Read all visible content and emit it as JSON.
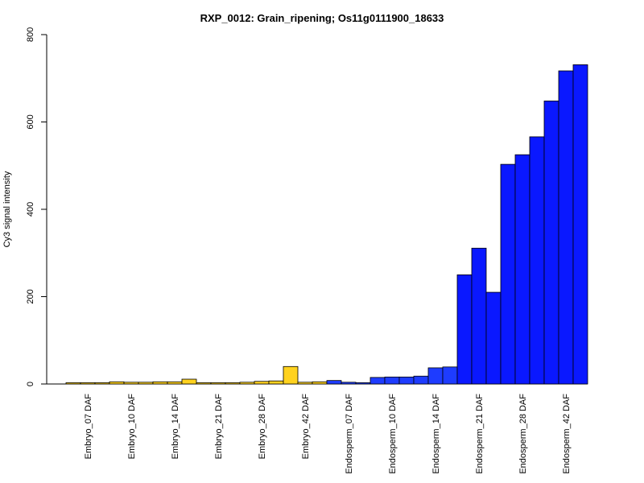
{
  "chart_data": {
    "type": "bar",
    "title": "RXP_0012: Grain_ripening; Os11g0111900_18633",
    "xlabel": "",
    "ylabel": "Cy3 signal intensity",
    "ylim": [
      0,
      800
    ],
    "yticks": [
      0,
      200,
      400,
      600,
      800
    ],
    "grid": false,
    "categories": [
      "Embryo_07 DAF",
      "Embryo_10 DAF",
      "Embryo_14 DAF",
      "Embryo_21 DAF",
      "Embryo_28 DAF",
      "Embryo_42 DAF",
      "Endosperm_07 DAF",
      "Endosperm_10 DAF",
      "Endosperm_14 DAF",
      "Endosperm_21 DAF",
      "Endosperm_28 DAF",
      "Endosperm_42 DAF"
    ],
    "bars_per_category": 3,
    "values": [
      [
        3,
        3,
        3
      ],
      [
        5,
        4,
        4
      ],
      [
        5,
        5,
        11
      ],
      [
        3,
        3,
        3
      ],
      [
        4,
        6,
        7
      ],
      [
        40,
        4,
        5
      ],
      [
        8,
        4,
        3
      ],
      [
        15,
        16,
        16
      ],
      [
        18,
        37,
        39
      ],
      [
        250,
        311,
        210
      ],
      [
        503,
        525,
        566
      ],
      [
        648,
        717,
        731
      ]
    ],
    "colors": {
      "embryo": "#FFD21F",
      "endosperm_light": "#1E3CFF",
      "endosperm_dark": "#0A18FF",
      "outline": "#000000"
    }
  }
}
